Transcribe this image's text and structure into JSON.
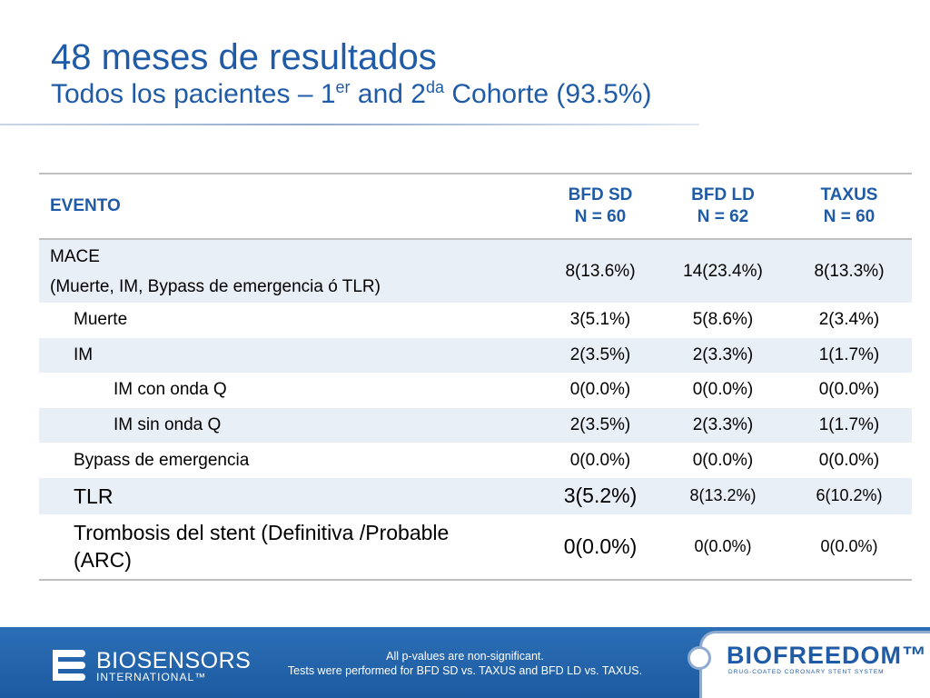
{
  "title": {
    "main": "48 meses de resultados",
    "sub_before": "Todos los pacientes – 1",
    "sub_sup1": "er",
    "sub_mid": " and 2",
    "sub_sup2": "da",
    "sub_after": " Cohorte (93.5%)"
  },
  "table": {
    "headers": {
      "event": "EVENTO",
      "col1_line1": "BFD SD",
      "col1_line2": "N = 60",
      "col2_line1": "BFD LD",
      "col2_line2": "N = 62",
      "col3_line1": "TAXUS",
      "col3_line2": "N = 60"
    },
    "rows": [
      {
        "label_line1": "MACE",
        "label_line2": "(Muerte, IM, Bypass de emergencia ó TLR)",
        "v1": "8(13.6%)",
        "v2": "14(23.4%)",
        "v3": "8(13.3%)"
      },
      {
        "label": "Muerte",
        "v1": "3(5.1%)",
        "v2": "5(8.6%)",
        "v3": "2(3.4%)"
      },
      {
        "label": "IM",
        "v1": "2(3.5%)",
        "v2": "2(3.3%)",
        "v3": "1(1.7%)"
      },
      {
        "label": "IM con onda Q",
        "v1": "0(0.0%)",
        "v2": "0(0.0%)",
        "v3": "0(0.0%)"
      },
      {
        "label": "IM sin onda Q",
        "v1": "2(3.5%)",
        "v2": "2(3.3%)",
        "v3": "1(1.7%)"
      },
      {
        "label": "Bypass de emergencia",
        "v1": "0(0.0%)",
        "v2": "0(0.0%)",
        "v3": "0(0.0%)"
      },
      {
        "label": "TLR",
        "v1": "3(5.2%)",
        "v2": "8(13.2%)",
        "v3": "6(10.2%)"
      },
      {
        "label_line1": "Trombosis del stent (Definitiva /Probable",
        "label_line2": "(ARC)",
        "v1": "0(0.0%)",
        "v2": "0(0.0%)",
        "v3": "0(0.0%)"
      }
    ]
  },
  "footer": {
    "brand": "BIOSENSORS",
    "brand_sub": "INTERNATIONAL™",
    "note_line1": "All p-values are non-significant.",
    "note_line2": "Tests were performed for BFD SD vs. TAXUS and BFD LD vs. TAXUS.",
    "product_name": "BIOFREEDOM™",
    "product_tagline": "DRUG-COATED CORONARY STENT SYSTEM"
  },
  "colors": {
    "title": "#1f5ba6",
    "row_shade": "#e9eff7",
    "footer_bg": "#1c5aa0",
    "panel_border": "#8eaacd"
  }
}
